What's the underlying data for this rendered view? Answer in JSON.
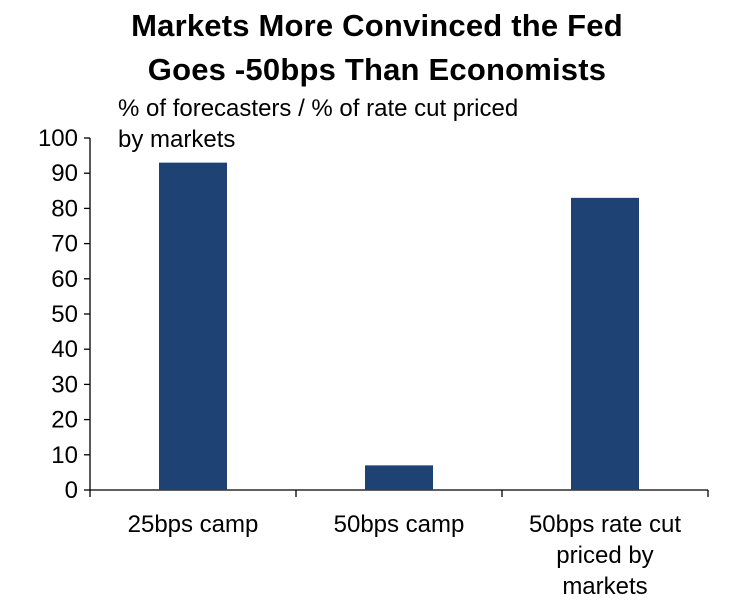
{
  "chart_data": {
    "type": "bar",
    "title_lines": [
      "Markets More Convinced the Fed",
      "Goes -50bps Than Economists"
    ],
    "subtitle_lines": [
      "% of forecasters / % of rate cut priced",
      "by markets"
    ],
    "categories": [
      [
        "25bps camp"
      ],
      [
        "50bps camp"
      ],
      [
        "50bps rate cut",
        "priced by",
        "markets"
      ]
    ],
    "values": [
      93,
      7,
      83
    ],
    "ylim": [
      0,
      100
    ],
    "yticks": [
      "0",
      "10",
      "20",
      "30",
      "40",
      "50",
      "60",
      "70",
      "80",
      "90",
      "100"
    ],
    "bar_color": "#1f4275",
    "grid": false
  }
}
